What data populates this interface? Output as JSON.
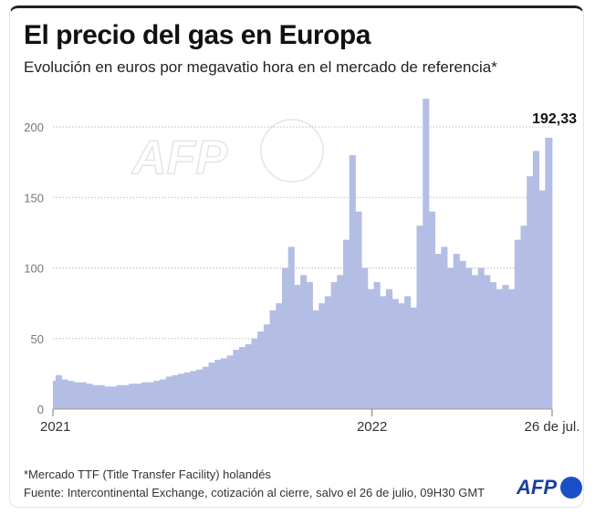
{
  "header": {
    "title": "El precio del gas en Europa",
    "subtitle": "Evolución en euros por megavatio hora en el mercado de referencia*"
  },
  "footer": {
    "note": "*Mercado TTF (Title Transfer Facility) holandés",
    "source": "Fuente: Intercontinental Exchange, cotización al cierre, salvo el 26 de julio, 09H30 GMT",
    "logo": "AFP"
  },
  "watermark": "AFP",
  "chart_data": {
    "type": "bar",
    "title": "El precio del gas en Europa",
    "ylabel": "",
    "xlabel": "",
    "ylim": [
      0,
      200
    ],
    "yticks": [
      0,
      50,
      100,
      150,
      200
    ],
    "ytick_labels": [
      "0",
      "50",
      "100",
      "150",
      "200"
    ],
    "xtick_labels": [
      {
        "date": "2021-01-01",
        "label": "2021"
      },
      {
        "date": "2022-01-01",
        "label": "2022"
      },
      {
        "date": "2022-07-26",
        "label": "26 de jul."
      }
    ],
    "grid": "horizontal dotted",
    "color": "#b4bee4",
    "annotation": {
      "date": "2022-07-26",
      "value": 192.33,
      "label": "192,33"
    },
    "x": [
      "2021-01-04",
      "2021-01-11",
      "2021-01-18",
      "2021-01-25",
      "2021-02-01",
      "2021-02-08",
      "2021-02-15",
      "2021-02-22",
      "2021-03-01",
      "2021-03-08",
      "2021-03-15",
      "2021-03-22",
      "2021-03-29",
      "2021-04-05",
      "2021-04-12",
      "2021-04-19",
      "2021-04-26",
      "2021-05-03",
      "2021-05-10",
      "2021-05-17",
      "2021-05-24",
      "2021-05-31",
      "2021-06-07",
      "2021-06-14",
      "2021-06-21",
      "2021-06-28",
      "2021-07-05",
      "2021-07-12",
      "2021-07-19",
      "2021-07-26",
      "2021-08-02",
      "2021-08-09",
      "2021-08-16",
      "2021-08-23",
      "2021-08-30",
      "2021-09-06",
      "2021-09-13",
      "2021-09-20",
      "2021-09-27",
      "2021-10-04",
      "2021-10-11",
      "2021-10-18",
      "2021-10-25",
      "2021-11-01",
      "2021-11-08",
      "2021-11-15",
      "2021-11-22",
      "2021-11-29",
      "2021-12-06",
      "2021-12-13",
      "2021-12-20",
      "2021-12-27",
      "2022-01-03",
      "2022-01-10",
      "2022-01-17",
      "2022-01-24",
      "2022-01-31",
      "2022-02-07",
      "2022-02-14",
      "2022-02-21",
      "2022-02-28",
      "2022-03-07",
      "2022-03-14",
      "2022-03-21",
      "2022-03-28",
      "2022-04-04",
      "2022-04-11",
      "2022-04-18",
      "2022-04-25",
      "2022-05-02",
      "2022-05-09",
      "2022-05-16",
      "2022-05-23",
      "2022-05-30",
      "2022-06-06",
      "2022-06-13",
      "2022-06-20",
      "2022-06-27",
      "2022-07-04",
      "2022-07-11",
      "2022-07-18",
      "2022-07-26"
    ],
    "values": [
      20,
      24,
      21,
      20,
      19,
      19,
      18,
      17,
      17,
      16,
      16,
      17,
      17,
      18,
      18,
      19,
      19,
      20,
      21,
      23,
      24,
      25,
      26,
      27,
      28,
      30,
      33,
      35,
      36,
      38,
      42,
      44,
      46,
      50,
      55,
      60,
      70,
      75,
      100,
      115,
      88,
      95,
      90,
      70,
      75,
      80,
      90,
      95,
      120,
      180,
      140,
      100,
      85,
      90,
      80,
      85,
      78,
      75,
      80,
      72,
      130,
      220,
      140,
      110,
      115,
      100,
      110,
      105,
      100,
      95,
      100,
      95,
      90,
      85,
      88,
      85,
      120,
      130,
      165,
      183,
      155,
      192.33
    ]
  }
}
